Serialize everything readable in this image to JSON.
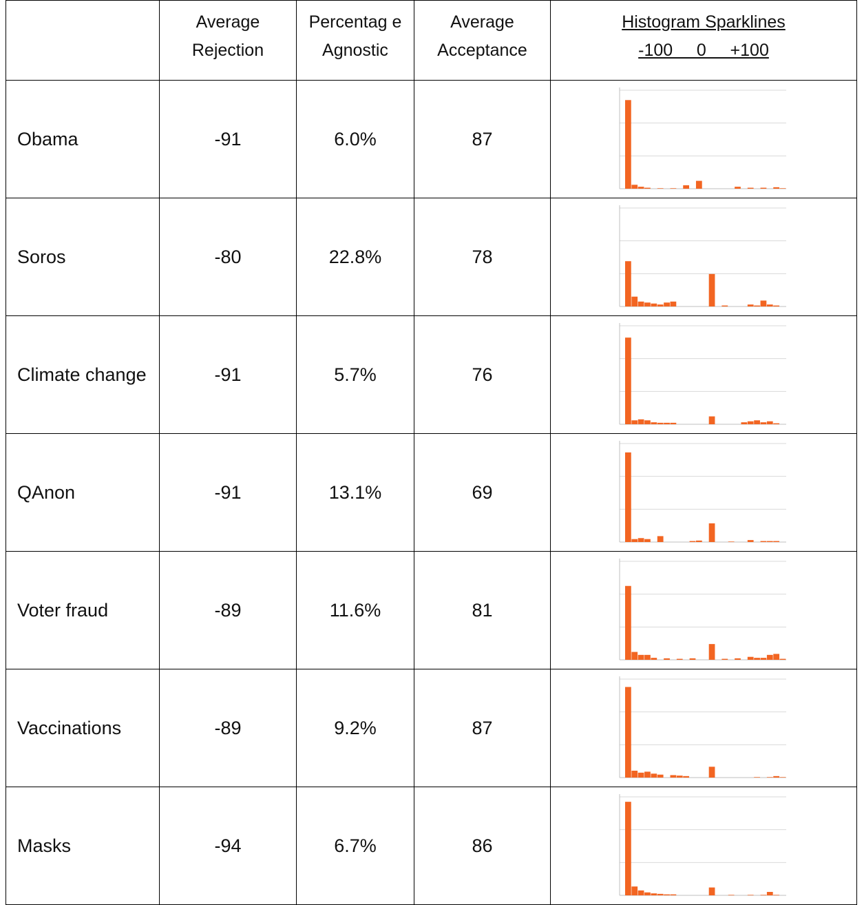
{
  "headers": {
    "topic": "",
    "rejection": "Average Rejection",
    "agnostic": "Percentag e Agnostic",
    "acceptance": "Average Acceptance",
    "sparklines_title": "Histogram Sparklines",
    "sparklines_axis": "-100     0     +100"
  },
  "colors": {
    "bar": "#f26522",
    "grid": "#d9d9d9",
    "axis": "#bfbfbf",
    "border": "#000000"
  },
  "rows": [
    {
      "topic": "Obama",
      "rejection": "-91",
      "agnostic": "6.0%",
      "acceptance": "87"
    },
    {
      "topic": "Soros",
      "rejection": "-80",
      "agnostic": "22.8%",
      "acceptance": "78"
    },
    {
      "topic": "Climate change",
      "rejection": "-91",
      "agnostic": "5.7%",
      "acceptance": "76"
    },
    {
      "topic": "QAnon",
      "rejection": "-91",
      "agnostic": "13.1%",
      "acceptance": "69"
    },
    {
      "topic": "Voter fraud",
      "rejection": "-89",
      "agnostic": "11.6%",
      "acceptance": "81"
    },
    {
      "topic": "Vaccinations",
      "rejection": "-89",
      "agnostic": "9.2%",
      "acceptance": "87"
    },
    {
      "topic": "Masks",
      "rejection": "-94",
      "agnostic": "6.7%",
      "acceptance": "86"
    }
  ],
  "chart_data": [
    {
      "type": "bar",
      "title": "Obama",
      "xlim": [
        -100,
        100
      ],
      "ylim": [
        0,
        1
      ],
      "values": [
        0.9,
        0.04,
        0.02,
        0.01,
        0,
        0.005,
        0,
        0.005,
        0,
        0.035,
        0,
        0.08,
        0,
        0,
        0,
        0,
        0,
        0.02,
        0,
        0.01,
        0,
        0.01,
        0,
        0.015,
        0.005
      ]
    },
    {
      "type": "bar",
      "title": "Soros",
      "xlim": [
        -100,
        100
      ],
      "ylim": [
        0,
        1
      ],
      "values": [
        0.46,
        0.1,
        0.05,
        0.04,
        0.03,
        0.02,
        0.04,
        0.05,
        0,
        0,
        0,
        0,
        0,
        0.33,
        0,
        0.01,
        0,
        0,
        0,
        0.02,
        0.01,
        0.06,
        0.02,
        0.01,
        0
      ]
    },
    {
      "type": "bar",
      "title": "Climate change",
      "xlim": [
        -100,
        100
      ],
      "ylim": [
        0,
        1
      ],
      "values": [
        0.88,
        0.04,
        0.05,
        0.04,
        0.02,
        0.015,
        0.015,
        0.015,
        0,
        0,
        0,
        0,
        0,
        0.08,
        0,
        0,
        0,
        0,
        0.02,
        0.03,
        0.04,
        0.02,
        0.03,
        0.01,
        0
      ]
    },
    {
      "type": "bar",
      "title": "QAnon",
      "xlim": [
        -100,
        100
      ],
      "ylim": [
        0,
        1
      ],
      "values": [
        0.91,
        0.03,
        0.04,
        0.03,
        0,
        0.06,
        0,
        0,
        0,
        0,
        0.01,
        0.015,
        0,
        0.19,
        0,
        0,
        0.005,
        0,
        0,
        0.02,
        0,
        0.01,
        0.01,
        0.01,
        0
      ]
    },
    {
      "type": "bar",
      "title": "Voter fraud",
      "xlim": [
        -100,
        100
      ],
      "ylim": [
        0,
        1
      ],
      "values": [
        0.75,
        0.08,
        0.05,
        0.05,
        0.02,
        0,
        0.015,
        0,
        0.01,
        0,
        0.015,
        0,
        0,
        0.16,
        0,
        0.01,
        0,
        0.015,
        0,
        0.03,
        0.02,
        0.02,
        0.05,
        0.06,
        0.01
      ]
    },
    {
      "type": "bar",
      "title": "Vaccinations",
      "xlim": [
        -100,
        100
      ],
      "ylim": [
        0,
        1
      ],
      "values": [
        0.92,
        0.07,
        0.05,
        0.06,
        0.04,
        0.03,
        0,
        0.025,
        0.02,
        0.015,
        0,
        0,
        0,
        0.11,
        0,
        0,
        0,
        0,
        0,
        0,
        0.005,
        0,
        0.005,
        0.015,
        0.005
      ]
    },
    {
      "type": "bar",
      "title": "Masks",
      "xlim": [
        -100,
        100
      ],
      "ylim": [
        0,
        1
      ],
      "values": [
        0.95,
        0.09,
        0.05,
        0.03,
        0.02,
        0.015,
        0.01,
        0.01,
        0,
        0,
        0,
        0,
        0,
        0.08,
        0,
        0,
        0.005,
        0,
        0,
        0.005,
        0,
        0.005,
        0.035,
        0.005,
        0
      ]
    }
  ]
}
